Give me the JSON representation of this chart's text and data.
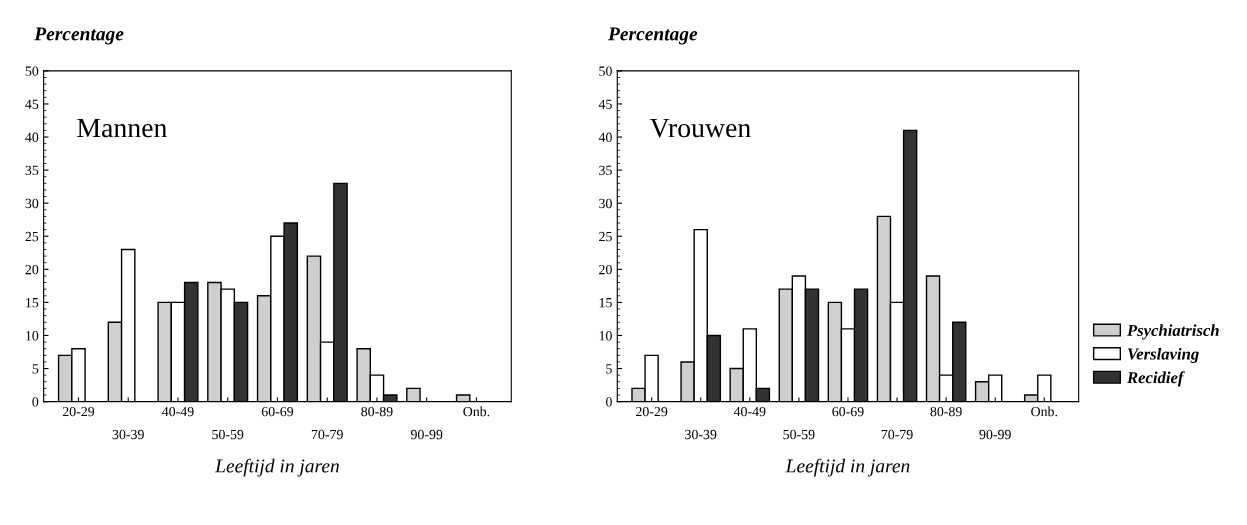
{
  "chart_data": [
    {
      "type": "bar",
      "title": "Mannen",
      "ylabel": "Percentage",
      "xlabel": "Leeftijd in jaren",
      "categories": [
        "20-29",
        "30-39",
        "40-49",
        "50-59",
        "60-69",
        "70-79",
        "80-89",
        "90-99",
        "Onb."
      ],
      "ylim": [
        0,
        50
      ],
      "yticks": [
        0,
        5,
        10,
        15,
        20,
        25,
        30,
        35,
        40,
        45,
        50
      ],
      "series": [
        {
          "color": "#cfcfcf",
          "values": [
            7,
            12,
            15,
            18,
            16,
            22,
            8,
            2,
            1
          ]
        },
        {
          "color": "#ffffff",
          "values": [
            8,
            23,
            15,
            17,
            25,
            9,
            4,
            null,
            null
          ]
        },
        {
          "color": "#333333",
          "values": [
            null,
            null,
            18,
            15,
            27,
            33,
            1,
            null,
            null
          ]
        }
      ]
    },
    {
      "type": "bar",
      "title": "Vrouwen",
      "ylabel": "Percentage",
      "xlabel": "Leeftijd in jaren",
      "categories": [
        "20-29",
        "30-39",
        "40-49",
        "50-59",
        "60-69",
        "70-79",
        "80-89",
        "90-99",
        "Onb."
      ],
      "ylim": [
        0,
        50
      ],
      "yticks": [
        0,
        5,
        10,
        15,
        20,
        25,
        30,
        35,
        40,
        45,
        50
      ],
      "legend": "bottom right",
      "series": [
        {
          "name": "Psychiatrisch",
          "color": "#cfcfcf",
          "values": [
            2,
            6,
            5,
            17,
            15,
            28,
            19,
            3,
            1
          ]
        },
        {
          "name": "Verslaving",
          "color": "#ffffff",
          "values": [
            7,
            26,
            11,
            19,
            11,
            15,
            4,
            4,
            4
          ]
        },
        {
          "name": "Recidief",
          "color": "#333333",
          "values": [
            null,
            10,
            2,
            17,
            17,
            41,
            12,
            null,
            null
          ]
        }
      ]
    }
  ]
}
